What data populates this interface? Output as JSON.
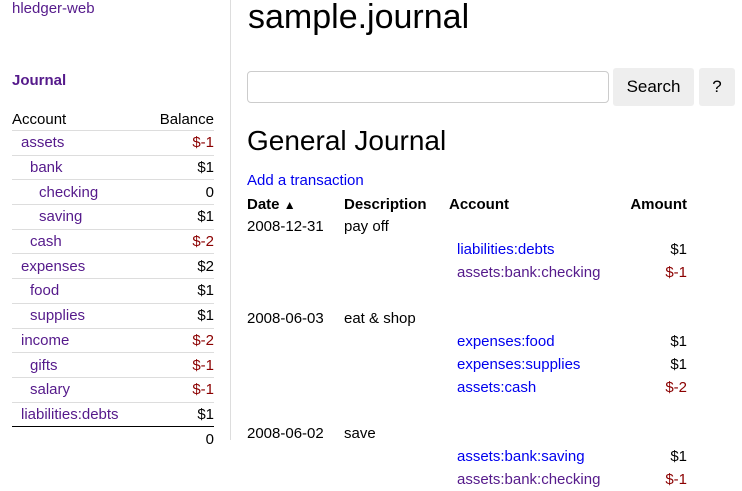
{
  "app": {
    "brand": "hledger-web",
    "journal_link": "Journal"
  },
  "sidebar": {
    "headers": {
      "account": "Account",
      "balance": "Balance"
    },
    "accounts": [
      {
        "name": "assets",
        "balance": "$-1",
        "depth": 0,
        "neg": true
      },
      {
        "name": "bank",
        "balance": "$1",
        "depth": 1,
        "neg": false
      },
      {
        "name": "checking",
        "balance": "0",
        "depth": 2,
        "neg": false
      },
      {
        "name": "saving",
        "balance": "$1",
        "depth": 2,
        "neg": false
      },
      {
        "name": "cash",
        "balance": "$-2",
        "depth": 1,
        "neg": true
      },
      {
        "name": "expenses",
        "balance": "$2",
        "depth": 0,
        "neg": false
      },
      {
        "name": "food",
        "balance": "$1",
        "depth": 1,
        "neg": false
      },
      {
        "name": "supplies",
        "balance": "$1",
        "depth": 1,
        "neg": false
      },
      {
        "name": "income",
        "balance": "$-2",
        "depth": 0,
        "neg": true
      },
      {
        "name": "gifts",
        "balance": "$-1",
        "depth": 1,
        "neg": true
      },
      {
        "name": "salary",
        "balance": "$-1",
        "depth": 1,
        "neg": true
      },
      {
        "name": "liabilities:debts",
        "balance": "$1",
        "depth": 0,
        "neg": false
      }
    ],
    "total": "0"
  },
  "main": {
    "title": "sample.journal",
    "search": {
      "value": "",
      "button": "Search",
      "help": "?"
    },
    "heading": "General Journal",
    "add_link": "Add a transaction",
    "columns": {
      "date": "Date",
      "sort_icon": "chevron-up",
      "description": "Description",
      "account": "Account",
      "amount": "Amount"
    },
    "transactions": [
      {
        "date": "2008-12-31",
        "description": "pay off",
        "postings": [
          {
            "account": "liabilities:debts",
            "amount": "$1",
            "visited": false
          },
          {
            "account": "assets:bank:checking",
            "amount": "$-1",
            "visited": true
          }
        ]
      },
      {
        "date": "2008-06-03",
        "description": "eat & shop",
        "postings": [
          {
            "account": "expenses:food",
            "amount": "$1",
            "visited": false
          },
          {
            "account": "expenses:supplies",
            "amount": "$1",
            "visited": false
          },
          {
            "account": "assets:cash",
            "amount": "$-2",
            "visited": false
          }
        ]
      },
      {
        "date": "2008-06-02",
        "description": "save",
        "postings": [
          {
            "account": "assets:bank:saving",
            "amount": "$1",
            "visited": false
          },
          {
            "account": "assets:bank:checking",
            "amount": "$-1",
            "visited": true
          }
        ]
      }
    ]
  },
  "colors": {
    "link": "#0000ee",
    "visited": "#551a8b",
    "negative": "#8b0000"
  }
}
